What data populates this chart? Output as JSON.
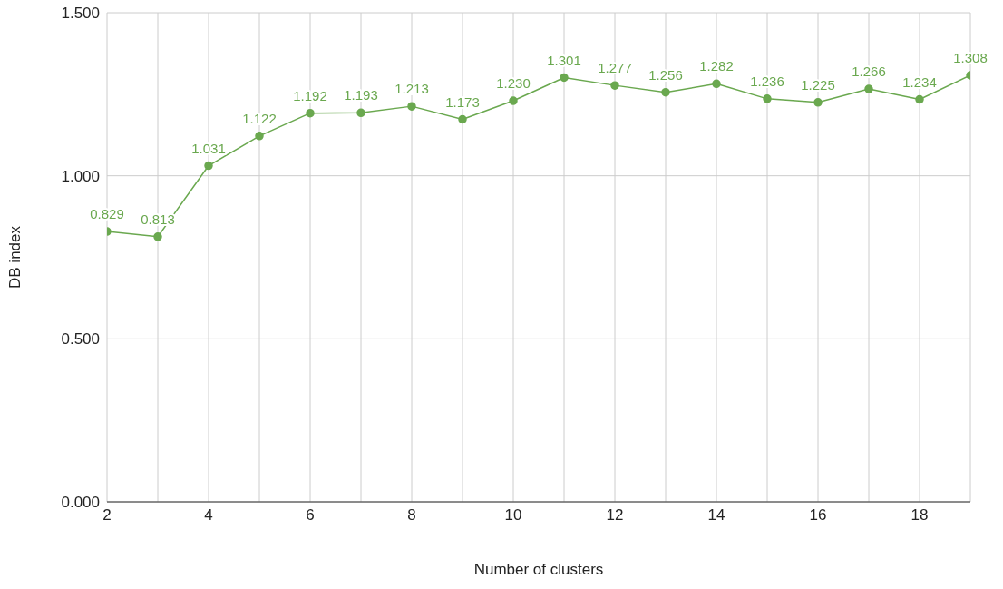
{
  "chart_data": {
    "type": "line",
    "xlabel": "Number of clusters",
    "ylabel": "DB index",
    "x": [
      2,
      3,
      4,
      5,
      6,
      7,
      8,
      9,
      10,
      11,
      12,
      13,
      14,
      15,
      16,
      17,
      18,
      19
    ],
    "series": [
      {
        "color": "#6aa84f",
        "values": [
          0.829,
          0.813,
          1.031,
          1.122,
          1.192,
          1.193,
          1.213,
          1.173,
          1.23,
          1.301,
          1.277,
          1.256,
          1.282,
          1.236,
          1.225,
          1.266,
          1.234,
          1.308
        ],
        "value_labels": [
          "0.829",
          "0.813",
          "1.031",
          "1.122",
          "1.192",
          "1.193",
          "1.213",
          "1.173",
          "1.230",
          "1.301",
          "1.277",
          "1.256",
          "1.282",
          "1.236",
          "1.225",
          "1.266",
          "1.234",
          "1.308"
        ]
      }
    ],
    "xlim": [
      2,
      19
    ],
    "xticks": [
      2,
      {
        "value": 3,
        "label": null
      },
      4,
      {
        "value": 5,
        "label": null
      },
      6,
      {
        "value": 7,
        "label": null
      },
      8,
      {
        "value": 9,
        "label": null
      },
      10,
      {
        "value": 11,
        "label": null
      },
      12,
      {
        "value": 13,
        "label": null
      },
      14,
      {
        "value": 15,
        "label": null
      },
      16,
      {
        "value": 17,
        "label": null
      },
      18,
      {
        "value": 19,
        "label": null
      }
    ],
    "ylim": [
      0,
      1.5
    ],
    "yticks": [
      {
        "value": 0,
        "label": "0.000"
      },
      {
        "value": 0.5,
        "label": "0.500"
      },
      {
        "value": 1,
        "label": "1.000"
      },
      {
        "value": 1.5,
        "label": "1.500"
      }
    ],
    "grid": true,
    "marker": "circle",
    "line_style": "solid",
    "legend": false
  }
}
